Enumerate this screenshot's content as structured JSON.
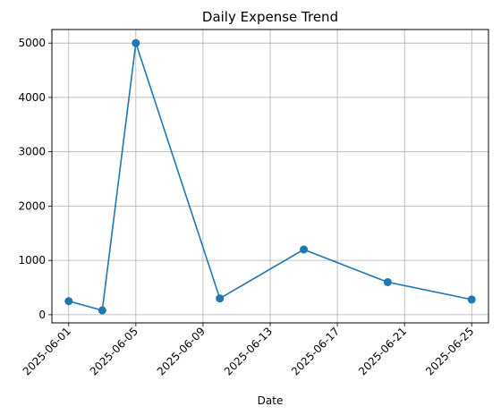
{
  "chart_data": {
    "type": "line",
    "title": "Daily Expense Trend",
    "xlabel": "Date",
    "ylabel": "",
    "x": [
      "2025-06-01",
      "2025-06-03",
      "2025-06-05",
      "2025-06-10",
      "2025-06-15",
      "2025-06-20",
      "2025-06-25"
    ],
    "series": [
      {
        "values": [
          250,
          80,
          5000,
          300,
          1200,
          600,
          280
        ],
        "color": "#1f77b4",
        "marker": "circle"
      }
    ],
    "xticks": [
      "2025-06-01",
      "2025-06-05",
      "2025-06-09",
      "2025-06-13",
      "2025-06-17",
      "2025-06-21",
      "2025-06-25"
    ],
    "yticks": [
      0,
      1000,
      2000,
      3000,
      4000,
      5000
    ],
    "xlim": [
      "2025-05-31",
      "2025-06-26"
    ],
    "ylim": [
      -150,
      5250
    ],
    "grid": true,
    "grid_color": "#b0b0b0"
  }
}
